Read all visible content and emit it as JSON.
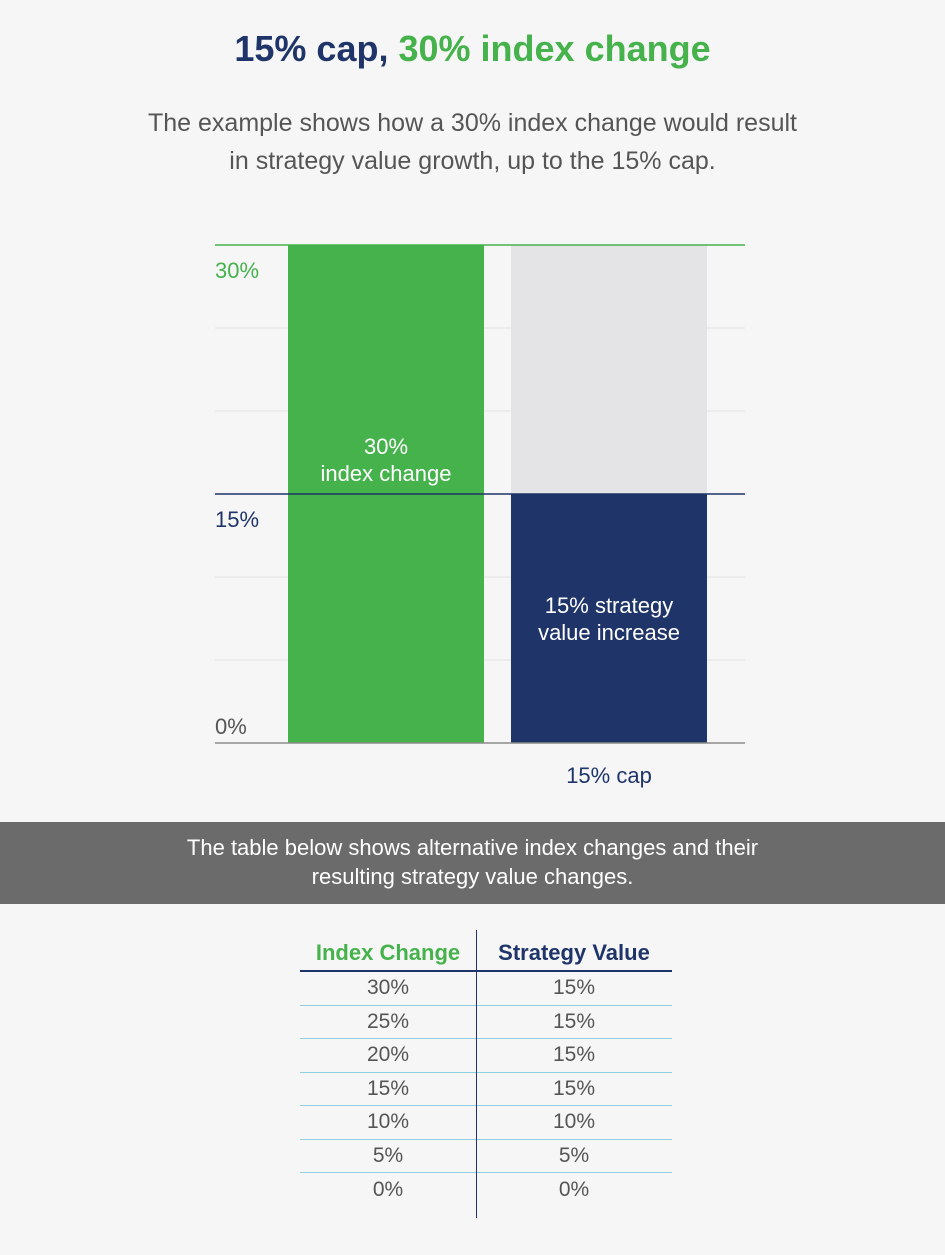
{
  "title": {
    "part1": "15% cap,",
    "part2": "30% index change"
  },
  "subtitle": "The example shows how a 30% index change would result in strategy value growth, up to the 15% cap.",
  "colors": {
    "green": "#45b24c",
    "navy": "#1f3569",
    "light_gray": "#e4e4e6",
    "grid": "#e2e2e2",
    "text_gray": "#555555",
    "banner": "#6b6b6b"
  },
  "chart_data": {
    "type": "bar",
    "ylim": [
      0,
      30
    ],
    "y_ticks": [
      {
        "value": 0,
        "label": "0%"
      },
      {
        "value": 15,
        "label": "15%"
      },
      {
        "value": 30,
        "label": "30%"
      }
    ],
    "grid": true,
    "bars": [
      {
        "name": "index",
        "value": 30,
        "label_lines": [
          "30%",
          "index change"
        ],
        "color": "#45b24c",
        "category_label": ""
      },
      {
        "name": "strategy",
        "value": 15,
        "cap_value": 30,
        "label_lines": [
          "15% strategy",
          "value increase"
        ],
        "color": "#1f3569",
        "category_label": "15% cap"
      }
    ]
  },
  "banner": "The table below shows alternative index changes and their resulting strategy value changes.",
  "table": {
    "headers": [
      "Index Change",
      "Strategy Value"
    ],
    "rows": [
      [
        "30%",
        "15%"
      ],
      [
        "25%",
        "15%"
      ],
      [
        "20%",
        "15%"
      ],
      [
        "15%",
        "15%"
      ],
      [
        "10%",
        "10%"
      ],
      [
        "5%",
        "5%"
      ],
      [
        "0%",
        "0%"
      ]
    ]
  }
}
